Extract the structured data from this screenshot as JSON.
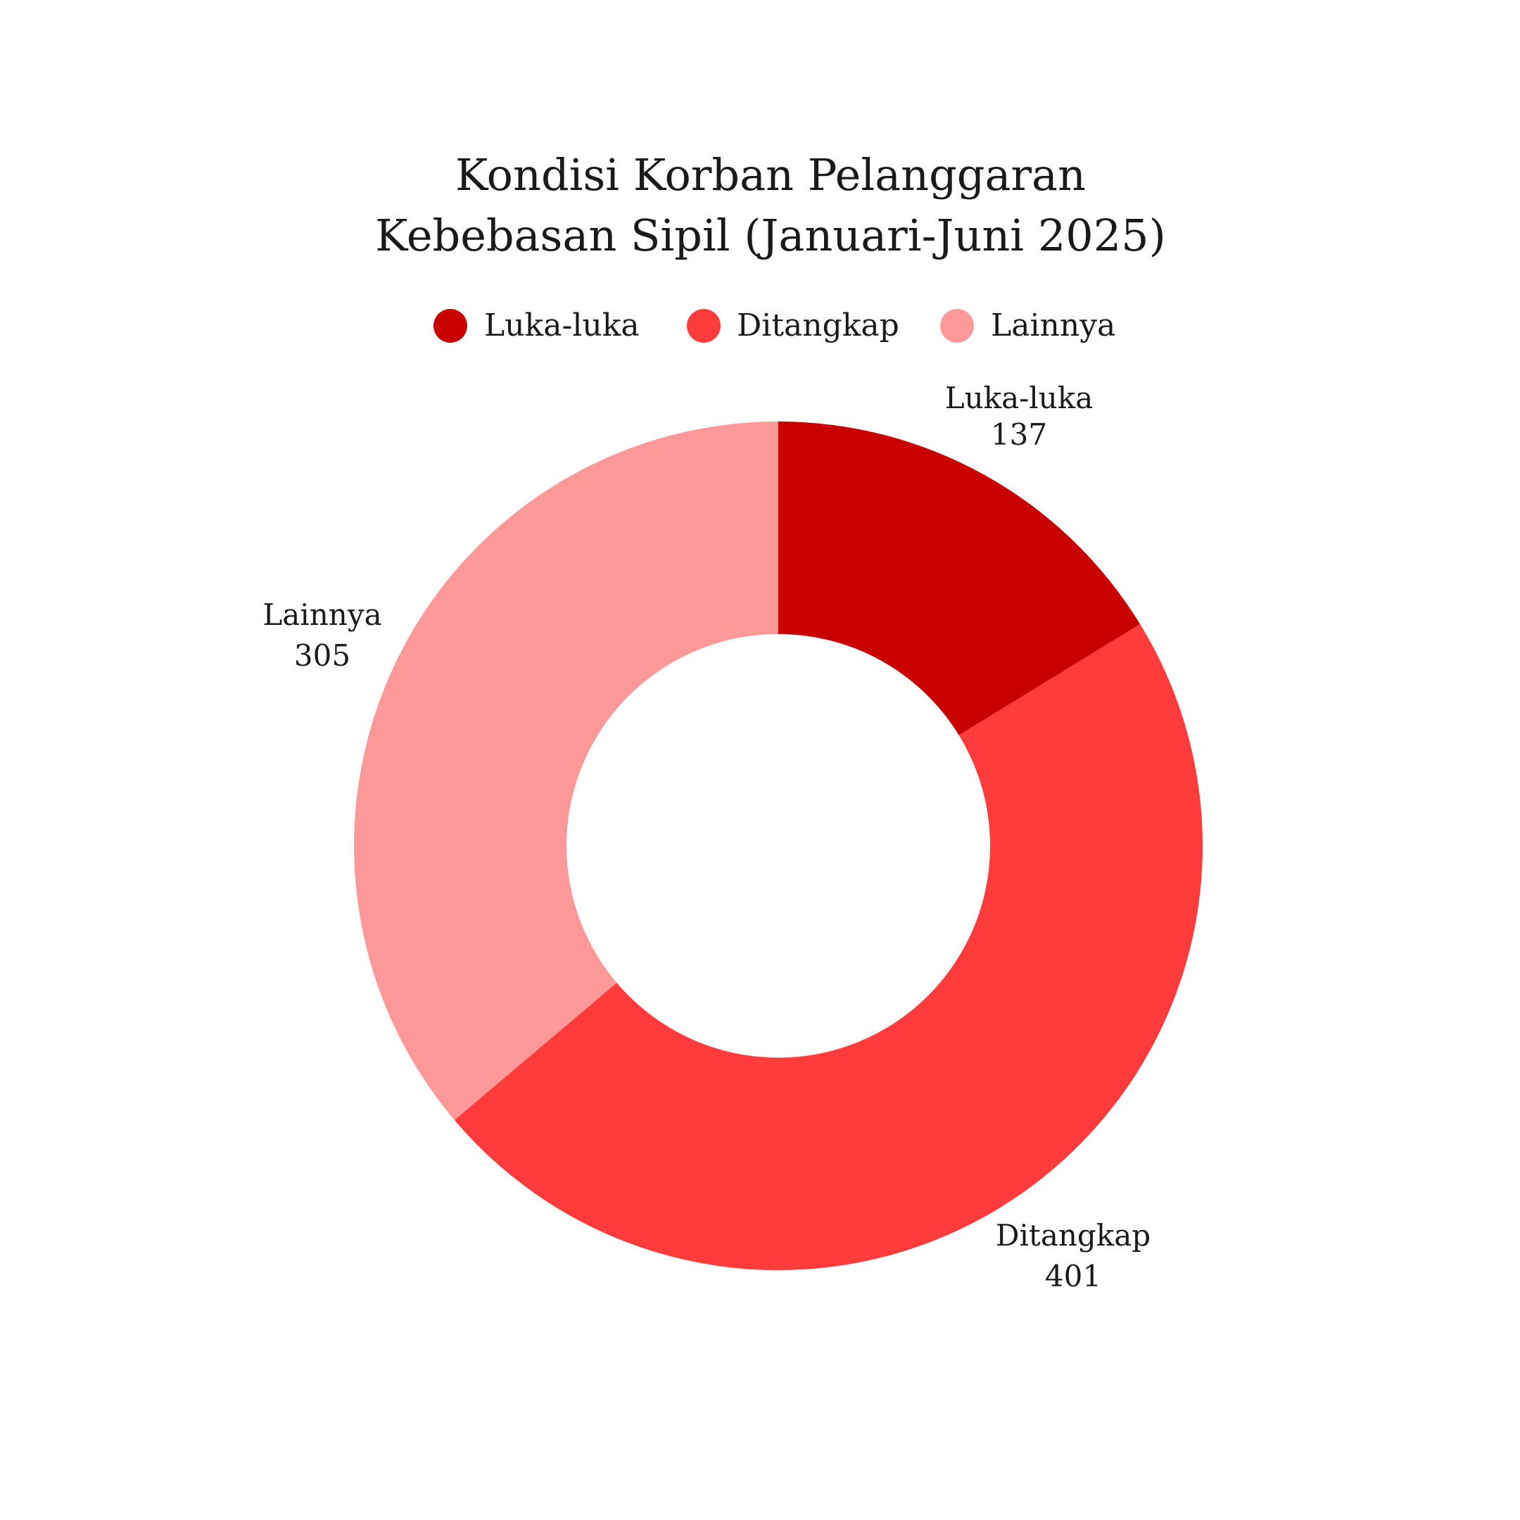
{
  "chart_data": {
    "type": "pie",
    "donut": true,
    "title": "Kondisi Korban Pelanggaran Kebebasan Sipil (Januari-Juni 2025)",
    "title_lines": [
      "Kondisi Korban Pelanggaran",
      "Kebebasan Sipil (Januari-Juni 2025)"
    ],
    "legend_position": "top-center",
    "categories": [
      "Luka-luka",
      "Ditangkap",
      "Lainnya"
    ],
    "values": [
      137,
      401,
      305
    ],
    "colors": [
      "#c80000",
      "#ff3b3b",
      "#ff9999"
    ],
    "slices": [
      {
        "label": "Luka-luka",
        "value": 137,
        "value_text": "137",
        "color": "#c80000"
      },
      {
        "label": "Ditangkap",
        "value": 401,
        "value_text": "401",
        "color": "#ff3b3b"
      },
      {
        "label": "Lainnya",
        "value": 305,
        "value_text": "305",
        "color": "#ff9999"
      }
    ]
  }
}
